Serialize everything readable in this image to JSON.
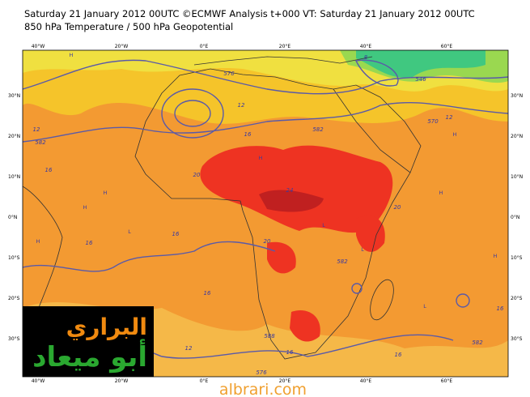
{
  "header": {
    "title": "Saturday 21 January 2012 00UTC ©ECMWF Analysis t+000 VT: Saturday 21 January 2012 00UTC",
    "subtitle": "850 hPa Temperature / 500 hPa Geopotential"
  },
  "map": {
    "longitude_labels": [
      "40°W",
      "20°W",
      "0°E",
      "20°E",
      "40°E",
      "60°E"
    ],
    "latitude_labels": [
      "30°N",
      "20°N",
      "10°N",
      "0°N",
      "10°S",
      "20°S",
      "30°S"
    ],
    "contour_labels": [
      "576",
      "582",
      "12",
      "16",
      "20",
      "24",
      "20",
      "16",
      "16",
      "20",
      "582",
      "16",
      "588",
      "16",
      "12",
      "576",
      "16",
      "16",
      "582",
      "570",
      "12",
      "546",
      "12",
      "16",
      "582",
      "8"
    ],
    "pressure_markers": [
      "H",
      "H",
      "H",
      "L",
      "H",
      "L",
      "H",
      "H",
      "L",
      "H",
      "L",
      "H"
    ]
  },
  "logo": {
    "line1": "البراري",
    "line2": "أبو ميعاد"
  },
  "footer": {
    "website": "albrari.com"
  }
}
